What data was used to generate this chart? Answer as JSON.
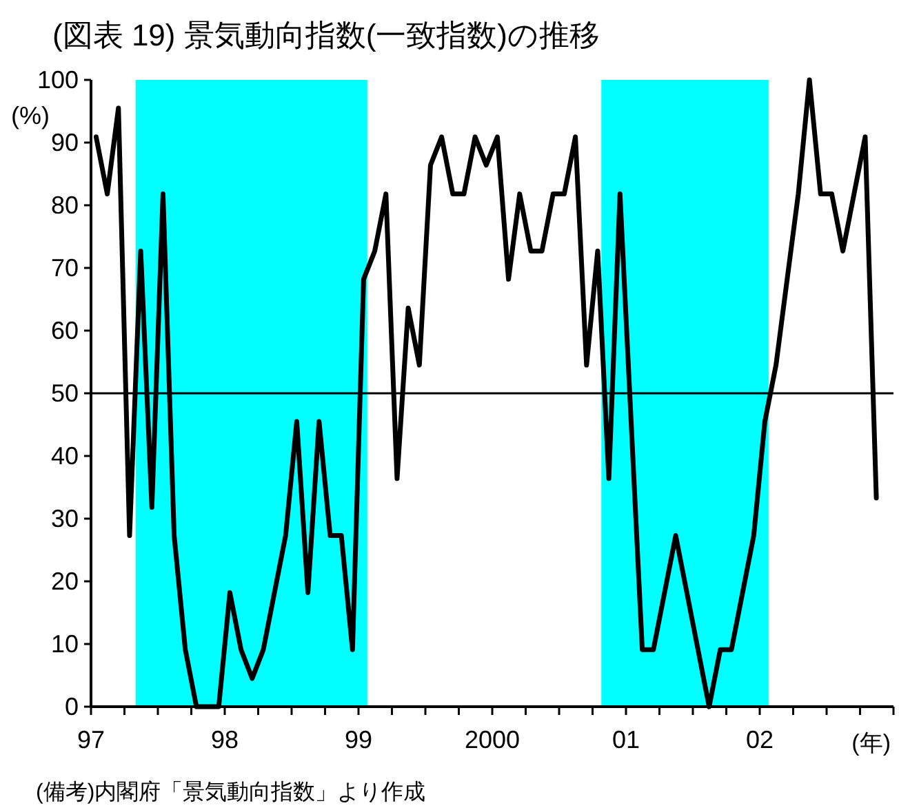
{
  "chart_data": {
    "type": "line",
    "title": "(図表 19) 景気動向指数(一致指数)の推移",
    "xlabel": "(年)",
    "ylabel": "(%)",
    "annotations": [
      "(備考)内閣府「景気動向指数」より作成"
    ],
    "x": [
      "1997-01-15",
      "1997-02-15",
      "1997-03-15",
      "1997-04-15",
      "1997-05-15",
      "1997-06-15",
      "1997-07-15",
      "1997-08-15",
      "1997-09-15",
      "1997-10-15",
      "1997-11-15",
      "1997-12-15",
      "1998-01-15",
      "1998-02-15",
      "1998-03-15",
      "1998-04-15",
      "1998-05-15",
      "1998-06-15",
      "1998-07-15",
      "1998-08-15",
      "1998-09-15",
      "1998-10-15",
      "1998-11-15",
      "1998-12-15",
      "1999-01-15",
      "1999-02-15",
      "1999-03-15",
      "1999-04-15",
      "1999-05-15",
      "1999-06-15",
      "1999-07-15",
      "1999-08-15",
      "1999-09-15",
      "1999-10-15",
      "1999-11-15",
      "1999-12-15",
      "2000-01-15",
      "2000-02-15",
      "2000-03-15",
      "2000-04-15",
      "2000-05-15",
      "2000-06-15",
      "2000-07-15",
      "2000-08-15",
      "2000-09-15",
      "2000-10-15",
      "2000-11-15",
      "2000-12-15",
      "2001-01-15",
      "2001-02-15",
      "2001-03-15",
      "2001-04-15",
      "2001-05-15",
      "2001-06-15",
      "2001-07-15",
      "2001-08-15",
      "2001-09-15",
      "2001-10-15",
      "2001-11-15",
      "2001-12-15",
      "2002-01-15",
      "2002-02-15",
      "2002-03-15",
      "2002-04-15",
      "2002-05-15",
      "2002-06-15",
      "2002-07-15",
      "2002-08-15",
      "2002-09-15",
      "2002-10-15",
      "2002-11-15"
    ],
    "series": [
      {
        "color": "#000000",
        "values": [
          90.9,
          81.8,
          95.5,
          27.3,
          72.7,
          31.8,
          81.8,
          27.3,
          9.1,
          0,
          0,
          0,
          18.2,
          9.1,
          4.5,
          9.1,
          18.2,
          27.3,
          45.5,
          18.2,
          45.5,
          27.3,
          27.3,
          9.1,
          68.2,
          72.7,
          81.8,
          36.4,
          63.6,
          54.5,
          86.4,
          90.9,
          81.8,
          81.8,
          90.9,
          86.4,
          90.9,
          68.2,
          81.8,
          72.7,
          72.7,
          81.8,
          81.8,
          90.9,
          54.5,
          72.7,
          36.4,
          81.8,
          45.5,
          9.1,
          9.1,
          18.2,
          27.3,
          18.2,
          9.1,
          0,
          9.1,
          9.1,
          18.2,
          27.3,
          45.5,
          54.5,
          68.2,
          81.8,
          100,
          81.8,
          81.8,
          72.7,
          81.8,
          90.9,
          33.3
        ]
      }
    ],
    "xlim": [
      "1997-01-01",
      "2003-01-01"
    ],
    "ylim": [
      0,
      100
    ],
    "xticks": [
      {
        "value": "1997-01-01",
        "label": "97"
      },
      {
        "value": "1997-04-01",
        "label": null
      },
      {
        "value": "1997-07-01",
        "label": null
      },
      {
        "value": "1997-10-01",
        "label": null
      },
      {
        "value": "1998-01-01",
        "label": "98"
      },
      {
        "value": "1998-04-01",
        "label": null
      },
      {
        "value": "1998-07-01",
        "label": null
      },
      {
        "value": "1998-10-01",
        "label": null
      },
      {
        "value": "1999-01-01",
        "label": "99"
      },
      {
        "value": "1999-04-01",
        "label": null
      },
      {
        "value": "1999-07-01",
        "label": null
      },
      {
        "value": "1999-10-01",
        "label": null
      },
      {
        "value": "2000-01-01",
        "label": "2000"
      },
      {
        "value": "2000-04-01",
        "label": null
      },
      {
        "value": "2000-07-01",
        "label": null
      },
      {
        "value": "2000-10-01",
        "label": null
      },
      {
        "value": "2001-01-01",
        "label": "01"
      },
      {
        "value": "2001-04-01",
        "label": null
      },
      {
        "value": "2001-07-01",
        "label": null
      },
      {
        "value": "2001-10-01",
        "label": null
      },
      {
        "value": "2002-01-01",
        "label": "02"
      },
      {
        "value": "2002-04-01",
        "label": null
      },
      {
        "value": "2002-07-01",
        "label": null
      },
      {
        "value": "2002-10-01",
        "label": null
      },
      {
        "value": "2003-01-01",
        "label": null
      }
    ],
    "yticks": [
      0,
      10,
      20,
      30,
      40,
      50,
      60,
      70,
      80,
      90,
      100
    ],
    "bands": [
      {
        "axis": "x",
        "from": "1997-05-01",
        "to": "1999-01-25",
        "color": "#00ffff"
      },
      {
        "axis": "x",
        "from": "2000-10-25",
        "to": "2002-01-25",
        "color": "#00ffff"
      }
    ],
    "ref_lines": [
      {
        "axis": "y",
        "value": 50,
        "color": "#000000"
      }
    ]
  }
}
